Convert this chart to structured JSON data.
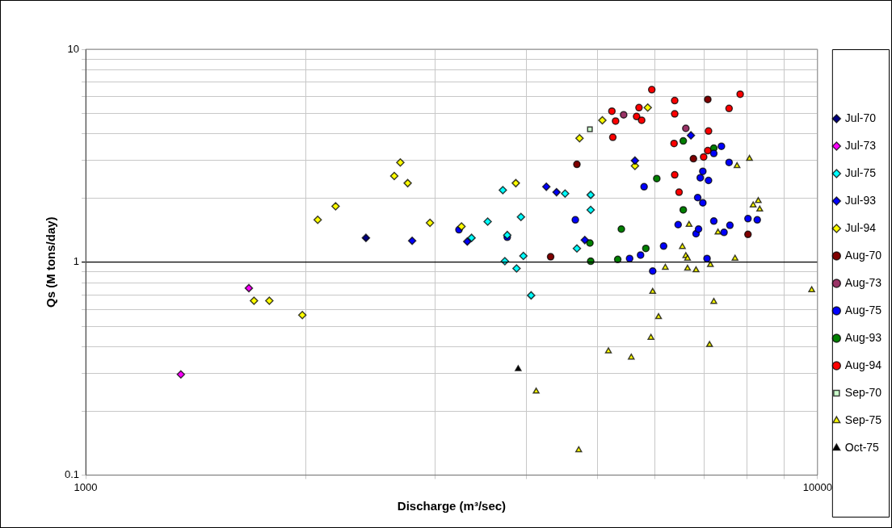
{
  "chart_data": {
    "type": "scatter",
    "xlabel": "Discharge (m³/sec)",
    "ylabel": "Qs (M tons/day)",
    "log": "xy",
    "grid": true,
    "legend": "right",
    "xlim": [
      1000,
      10000
    ],
    "ylim": [
      0.1,
      10
    ],
    "xticks": [
      1000,
      {
        "value": 2000,
        "label": null
      },
      {
        "value": 3000,
        "label": null
      },
      {
        "value": 4000,
        "label": null
      },
      {
        "value": 5000,
        "label": null
      },
      {
        "value": 6000,
        "label": null
      },
      {
        "value": 7000,
        "label": null
      },
      {
        "value": 8000,
        "label": null
      },
      {
        "value": 9000,
        "label": null
      },
      10000
    ],
    "yticks": [
      0.1,
      {
        "value": 0.2,
        "label": null
      },
      {
        "value": 0.3,
        "label": null
      },
      {
        "value": 0.4,
        "label": null
      },
      {
        "value": 0.5,
        "label": null
      },
      {
        "value": 0.6,
        "label": null
      },
      {
        "value": 0.7,
        "label": null
      },
      {
        "value": 0.8,
        "label": null
      },
      {
        "value": 0.9,
        "label": null
      },
      1,
      {
        "value": 2,
        "label": null
      },
      {
        "value": 3,
        "label": null
      },
      {
        "value": 4,
        "label": null
      },
      {
        "value": 5,
        "label": null
      },
      {
        "value": 6,
        "label": null
      },
      {
        "value": 7,
        "label": null
      },
      {
        "value": 8,
        "label": null
      },
      {
        "value": 9,
        "label": null
      },
      10
    ],
    "ref_lines": [
      {
        "axis": "y",
        "value": 1,
        "color": "#000000"
      }
    ],
    "series": [
      {
        "name": "Jul-70",
        "color": "#000080",
        "marker": "diamond",
        "x": [
          2415
        ],
        "values": [
          1.3
        ]
      },
      {
        "name": "Jul-73",
        "color": "#ff00ff",
        "marker": "diamond",
        "x": [
          1349,
          1671
        ],
        "values": [
          0.297,
          0.755
        ]
      },
      {
        "name": "Jul-75",
        "color": "#00ffff",
        "marker": "diamond",
        "x": [
          3715,
          3542,
          3933,
          3367,
          3767,
          3739,
          3879,
          3963,
          4061,
          4519,
          4898,
          4898,
          4690
        ],
        "values": [
          2.18,
          1.55,
          1.63,
          1.3,
          1.34,
          1.01,
          0.934,
          1.07,
          0.698,
          2.1,
          2.07,
          1.76,
          1.16
        ]
      },
      {
        "name": "Jul-93",
        "color": "#0000ff",
        "marker": "diamond",
        "x": [
          2793,
          3322,
          4260,
          4399,
          4808,
          5630,
          6714
        ],
        "values": [
          1.26,
          1.25,
          2.26,
          2.13,
          1.27,
          3.0,
          3.94
        ]
      },
      {
        "name": "Jul-94",
        "color": "#ffff00",
        "marker": "diamond",
        "x": [
          2691,
          2640,
          2754,
          2195,
          2075,
          2954,
          1698,
          1782,
          1977,
          3262,
          3870,
          4729,
          5081,
          5630,
          5861
        ],
        "values": [
          2.94,
          2.54,
          2.35,
          1.83,
          1.58,
          1.53,
          0.659,
          0.659,
          0.564,
          1.47,
          2.35,
          3.82,
          4.64,
          2.83,
          5.32
        ]
      },
      {
        "name": "Aug-70",
        "color": "#800000",
        "marker": "circle",
        "x": [
          4690,
          4318,
          7080,
          6767,
          8034
        ],
        "values": [
          2.88,
          1.06,
          5.81,
          3.06,
          1.35
        ]
      },
      {
        "name": "Aug-73",
        "color": "#993366",
        "marker": "circle",
        "x": [
          5433,
          6607
        ],
        "values": [
          4.92,
          4.25
        ]
      },
      {
        "name": "Aug-75",
        "color": "#0000ff",
        "marker": "circle",
        "x": [
          3236,
          3767,
          4667,
          5794,
          5536,
          5730,
          5953,
          6161,
          6449,
          6823,
          6877,
          6858,
          6970,
          6914,
          6970,
          7096,
          7215,
          7390,
          7570,
          7215,
          7451,
          7590,
          8034,
          8272,
          7063
        ],
        "values": [
          1.42,
          1.31,
          1.58,
          2.26,
          1.04,
          1.08,
          0.908,
          1.19,
          1.5,
          1.36,
          1.43,
          2.01,
          1.9,
          2.49,
          2.67,
          2.42,
          3.24,
          3.5,
          2.94,
          1.56,
          1.38,
          1.49,
          1.6,
          1.58,
          1.04
        ]
      },
      {
        "name": "Aug-93",
        "color": "#008000",
        "marker": "circle",
        "x": [
          4886,
          4898,
          5333,
          5394,
          5826,
          6030,
          6554,
          6554,
          7215
        ],
        "values": [
          1.23,
          1.01,
          1.03,
          1.43,
          1.16,
          2.47,
          1.76,
          3.71,
          3.43
        ]
      },
      {
        "name": "Aug-94",
        "color": "#ff0000",
        "marker": "circle",
        "x": [
          5236,
          5297,
          5251,
          5659,
          5702,
          5750,
          5936,
          6380,
          6380,
          6367,
          6380,
          6468,
          7096,
          7080,
          6988,
          7570,
          7839
        ],
        "values": [
          5.12,
          4.6,
          3.86,
          4.83,
          5.32,
          4.64,
          6.46,
          5.74,
          4.97,
          3.61,
          2.57,
          2.13,
          4.13,
          3.34,
          3.12,
          5.27,
          6.15
        ]
      },
      {
        "name": "Sep-70",
        "color": "#ccffcc",
        "marker": "square",
        "x": [
          4886
        ],
        "values": [
          4.21
        ]
      },
      {
        "name": "Sep-75",
        "color": "#ffff00",
        "marker": "triangle",
        "x": [
          8072,
          7762,
          8299,
          8166,
          8337,
          6675,
          7311,
          6536,
          6607,
          6643,
          7713,
          6194,
          6643,
          6823,
          7138,
          5953,
          7215,
          9817,
          6064,
          5920,
          7119,
          5179,
          5565,
          4126,
          4717
        ],
        "values": [
          3.06,
          2.83,
          1.94,
          1.85,
          1.77,
          1.5,
          1.38,
          1.18,
          1.07,
          1.04,
          1.04,
          0.943,
          0.934,
          0.917,
          0.971,
          0.726,
          0.652,
          0.74,
          0.553,
          0.442,
          0.409,
          0.382,
          0.357,
          0.247,
          0.131
        ]
      },
      {
        "name": "Oct-75",
        "color": "#000000",
        "marker": "triangle",
        "x": [
          3899
        ],
        "values": [
          0.315
        ]
      }
    ]
  }
}
